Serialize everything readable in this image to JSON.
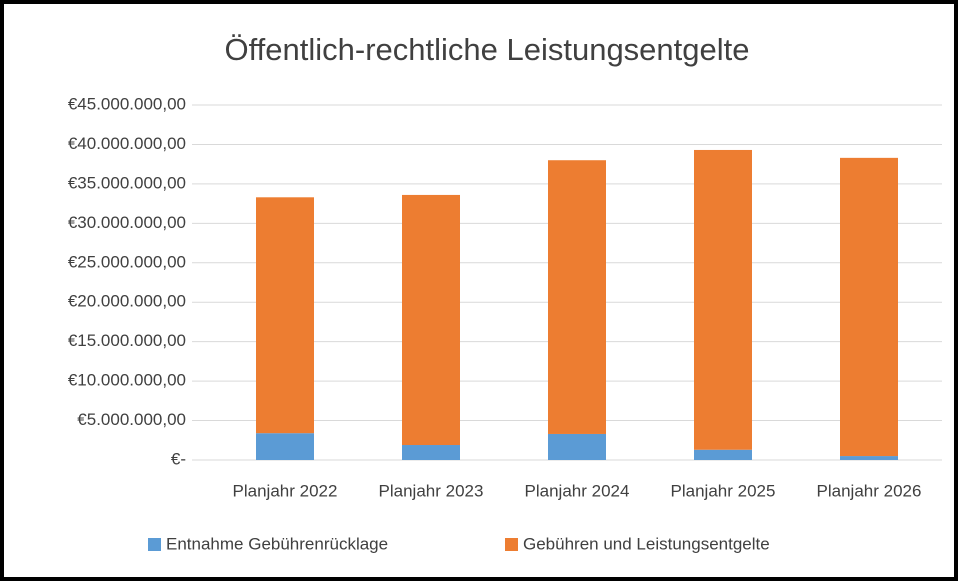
{
  "chart_data": {
    "type": "stacked_bar",
    "title": "Öffentlich-rechtliche Leistungsentgelte",
    "categories": [
      "Planjahr 2022",
      "Planjahr 2023",
      "Planjahr 2024",
      "Planjahr 2025",
      "Planjahr 2026"
    ],
    "series": [
      {
        "name": "Entnahme Gebührenrücklage",
        "color": "#5b9bd5",
        "values": [
          3400000,
          1900000,
          3300000,
          1300000,
          500000
        ]
      },
      {
        "name": "Gebühren und Leistungsentgelte",
        "color": "#ed7d31",
        "values": [
          29900000,
          31700000,
          34700000,
          38000000,
          37800000
        ]
      }
    ],
    "ylim": [
      0,
      45000000
    ],
    "yticks": [
      {
        "value": 0,
        "label": "€-"
      },
      {
        "value": 5000000,
        "label": "€5.000.000,00"
      },
      {
        "value": 10000000,
        "label": "€10.000.000,00"
      },
      {
        "value": 15000000,
        "label": "€15.000.000,00"
      },
      {
        "value": 20000000,
        "label": "€20.000.000,00"
      },
      {
        "value": 25000000,
        "label": "€25.000.000,00"
      },
      {
        "value": 30000000,
        "label": "€30.000.000,00"
      },
      {
        "value": 35000000,
        "label": "€35.000.000,00"
      },
      {
        "value": 40000000,
        "label": "€40.000.000,00"
      },
      {
        "value": 45000000,
        "label": "€45.000.000,00"
      }
    ],
    "grid": true,
    "legend": "bottom"
  }
}
